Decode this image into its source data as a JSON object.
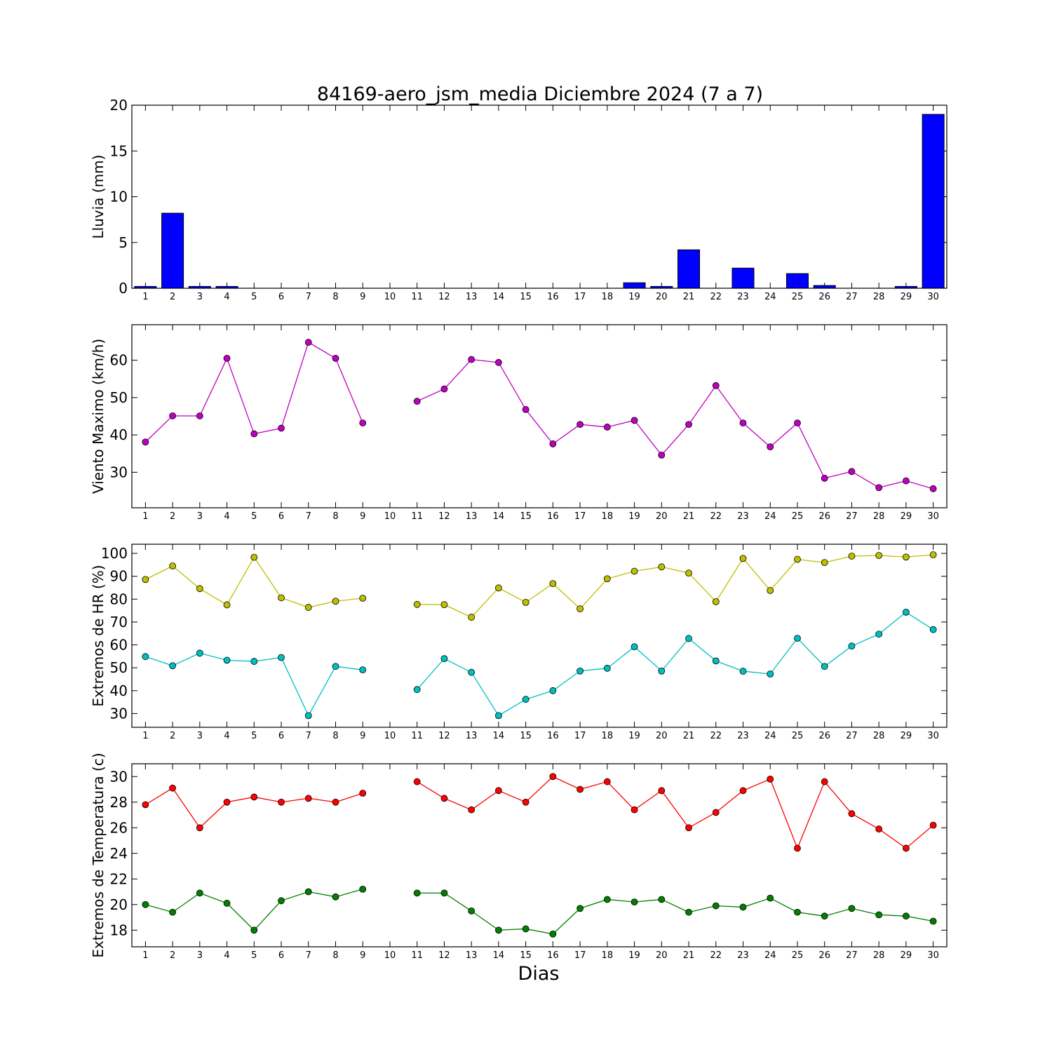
{
  "figure": {
    "title": "84169-aero_jsm_media Diciembre 2024  (7 a 7)",
    "xlabel": "Dias"
  },
  "chart_data": [
    {
      "type": "bar",
      "ylabel": "Lluvia (mm)",
      "x": [
        1,
        2,
        3,
        4,
        5,
        6,
        7,
        8,
        9,
        10,
        11,
        12,
        13,
        14,
        15,
        16,
        17,
        18,
        19,
        20,
        21,
        22,
        23,
        24,
        25,
        26,
        27,
        28,
        29,
        30
      ],
      "ylim": [
        0,
        20
      ],
      "yticks": [
        0,
        5,
        10,
        15,
        20
      ],
      "series": [
        {
          "color": "#0000ff",
          "values": [
            0.2,
            8.2,
            0.2,
            0.2,
            0,
            0,
            0,
            0,
            0,
            null,
            0,
            0,
            0,
            0,
            0,
            0,
            0,
            0,
            0.6,
            0.2,
            4.2,
            0,
            2.2,
            0,
            1.6,
            0.3,
            0,
            0,
            0.2,
            19.0
          ]
        }
      ]
    },
    {
      "type": "line",
      "ylabel": "Viento Maximo (km/h)",
      "x": [
        1,
        2,
        3,
        4,
        5,
        6,
        7,
        8,
        9,
        10,
        11,
        12,
        13,
        14,
        15,
        16,
        17,
        18,
        19,
        20,
        21,
        22,
        23,
        24,
        25,
        26,
        27,
        28,
        29,
        30
      ],
      "ylim": [
        20.5,
        69.5
      ],
      "yticks": [
        30,
        40,
        50,
        60
      ],
      "series": [
        {
          "color": "#bf00bf",
          "values": [
            38.1,
            45.1,
            45.1,
            60.5,
            40.3,
            41.8,
            64.8,
            60.5,
            43.2,
            null,
            49.0,
            52.3,
            60.2,
            59.4,
            46.8,
            37.6,
            42.8,
            42.1,
            43.9,
            34.6,
            42.8,
            53.2,
            43.2,
            36.8,
            43.2,
            28.4,
            30.2,
            25.9,
            27.7,
            25.6
          ]
        }
      ]
    },
    {
      "type": "line",
      "ylabel": "Extremos de HR (%)",
      "x": [
        1,
        2,
        3,
        4,
        5,
        6,
        7,
        8,
        9,
        10,
        11,
        12,
        13,
        14,
        15,
        16,
        17,
        18,
        19,
        20,
        21,
        22,
        23,
        24,
        25,
        26,
        27,
        28,
        29,
        30
      ],
      "ylim": [
        24,
        104
      ],
      "yticks": [
        30,
        40,
        50,
        60,
        70,
        80,
        90,
        100
      ],
      "series": [
        {
          "color": "#bfbf00",
          "values": [
            88.6,
            94.5,
            84.6,
            77.5,
            98.3,
            80.6,
            76.4,
            79.1,
            80.4,
            null,
            77.7,
            77.6,
            72.1,
            84.9,
            78.6,
            86.8,
            75.8,
            88.9,
            92.2,
            94.1,
            91.4,
            78.9,
            97.8,
            83.8,
            97.4,
            96.0,
            98.8,
            99.1,
            98.4,
            99.4
          ]
        },
        {
          "color": "#00bfbf",
          "values": [
            54.9,
            50.9,
            56.4,
            53.3,
            52.8,
            54.5,
            29.1,
            50.6,
            49.1,
            null,
            40.5,
            54.0,
            48.0,
            29.1,
            36.2,
            40.0,
            48.6,
            49.8,
            59.2,
            48.6,
            62.8,
            53.0,
            48.5,
            47.3,
            62.9,
            50.6,
            59.5,
            64.7,
            74.3,
            66.7
          ]
        }
      ]
    },
    {
      "type": "line",
      "ylabel": "Extremos de Temperatura (c)",
      "x": [
        1,
        2,
        3,
        4,
        5,
        6,
        7,
        8,
        9,
        10,
        11,
        12,
        13,
        14,
        15,
        16,
        17,
        18,
        19,
        20,
        21,
        22,
        23,
        24,
        25,
        26,
        27,
        28,
        29,
        30
      ],
      "ylim": [
        16.7,
        31.0
      ],
      "yticks": [
        18,
        20,
        22,
        24,
        26,
        28,
        30
      ],
      "series": [
        {
          "color": "#ff0000",
          "values": [
            27.8,
            29.1,
            26.0,
            28.0,
            28.4,
            28.0,
            28.3,
            28.0,
            28.7,
            null,
            29.6,
            28.3,
            27.4,
            28.9,
            28.0,
            30.0,
            29.0,
            29.6,
            27.4,
            28.9,
            26.0,
            27.2,
            28.9,
            29.8,
            24.4,
            29.6,
            27.1,
            25.9,
            24.4,
            26.2
          ]
        },
        {
          "color": "#008000",
          "values": [
            20.0,
            19.4,
            20.9,
            20.1,
            18.0,
            20.3,
            21.0,
            20.6,
            21.2,
            null,
            20.9,
            20.9,
            19.5,
            18.0,
            18.1,
            17.7,
            19.7,
            20.4,
            20.2,
            20.4,
            19.4,
            19.9,
            19.8,
            20.5,
            19.4,
            19.1,
            19.7,
            19.2,
            19.1,
            18.7
          ]
        }
      ]
    }
  ]
}
